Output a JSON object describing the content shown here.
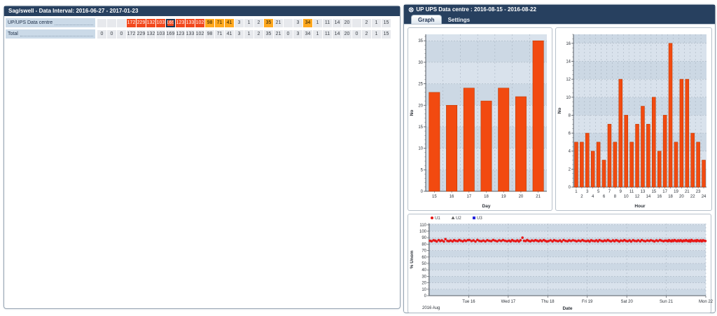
{
  "left_panel": {
    "title": "Sag/swell - Data Interval: 2016-06-27 - 2017-01-23",
    "rows": [
      {
        "label": "UP/UPS Data centre",
        "cells": [
          [
            "",
            "empty"
          ],
          [
            "",
            "empty"
          ],
          [
            "",
            "empty"
          ],
          [
            "172",
            "red"
          ],
          [
            "229",
            "red"
          ],
          [
            "132",
            "red"
          ],
          [
            "103",
            "red"
          ],
          [
            "169",
            "red",
            "sel"
          ],
          [
            "123",
            "red"
          ],
          [
            "133",
            "red"
          ],
          [
            "102",
            "red"
          ],
          [
            "98",
            "orange"
          ],
          [
            "71",
            "orange"
          ],
          [
            "41",
            "orange"
          ],
          [
            "3",
            "plain"
          ],
          [
            "1",
            "plain"
          ],
          [
            "2",
            "plain"
          ],
          [
            "35",
            "orange"
          ],
          [
            "21",
            "plain"
          ],
          [
            "",
            "empty"
          ],
          [
            "3",
            "plain"
          ],
          [
            "34",
            "orange"
          ],
          [
            "1",
            "plain"
          ],
          [
            "11",
            "plain"
          ],
          [
            "14",
            "plain"
          ],
          [
            "20",
            "plain"
          ],
          [
            "",
            "empty"
          ],
          [
            "2",
            "plain"
          ],
          [
            "1",
            "plain"
          ],
          [
            "15",
            "plain"
          ]
        ]
      },
      {
        "label": "Total",
        "cells": [
          [
            "0",
            "plain"
          ],
          [
            "0",
            "plain"
          ],
          [
            "0",
            "plain"
          ],
          [
            "172",
            "plain"
          ],
          [
            "229",
            "plain"
          ],
          [
            "132",
            "plain"
          ],
          [
            "103",
            "plain"
          ],
          [
            "169",
            "plain"
          ],
          [
            "123",
            "plain"
          ],
          [
            "133",
            "plain"
          ],
          [
            "102",
            "plain"
          ],
          [
            "98",
            "plain"
          ],
          [
            "71",
            "plain"
          ],
          [
            "41",
            "plain"
          ],
          [
            "3",
            "plain"
          ],
          [
            "1",
            "plain"
          ],
          [
            "2",
            "plain"
          ],
          [
            "35",
            "plain"
          ],
          [
            "21",
            "plain"
          ],
          [
            "0",
            "plain"
          ],
          [
            "3",
            "plain"
          ],
          [
            "34",
            "plain"
          ],
          [
            "1",
            "plain"
          ],
          [
            "11",
            "plain"
          ],
          [
            "14",
            "plain"
          ],
          [
            "20",
            "plain"
          ],
          [
            "0",
            "plain"
          ],
          [
            "2",
            "plain"
          ],
          [
            "1",
            "plain"
          ],
          [
            "15",
            "plain"
          ]
        ]
      }
    ]
  },
  "right_panel": {
    "close_icon": "⊗",
    "title": "UP UPS Data centre :  2016-08-15 - 2016-08-22",
    "tabs": [
      {
        "label": "Graph",
        "active": true
      },
      {
        "label": "Settings",
        "active": false
      }
    ]
  },
  "colors": {
    "header_navy": "#27405f",
    "bar_fill": "#f24a10",
    "bar_stroke": "#bf3a00",
    "band_dark": "#ccd8e4",
    "band_light": "#d9e2ec",
    "grid_dash": "#9fabb8",
    "axis": "#555b63",
    "dot_red": "#e61717",
    "tri_gray": "#5a5a5a",
    "sq_blue": "#2424dd",
    "cell_red": "#f2481d",
    "cell_orange": "#ffa81e"
  },
  "chart_data": [
    {
      "type": "bar",
      "id": "day",
      "categories": [
        "15",
        "16",
        "17",
        "18",
        "19",
        "20",
        "21"
      ],
      "values": [
        23,
        20,
        24,
        21,
        24,
        22,
        35
      ],
      "title": "",
      "xlabel": "Day",
      "ylabel": "No",
      "ylim": [
        0,
        36.5
      ],
      "ytick_major": 5,
      "ytick_minor": 1,
      "stagger_xlabels": false,
      "grid": true,
      "legend_position": "none"
    },
    {
      "type": "bar",
      "id": "hour",
      "categories": [
        "1",
        "2",
        "3",
        "4",
        "5",
        "6",
        "7",
        "8",
        "9",
        "10",
        "11",
        "12",
        "13",
        "14",
        "15",
        "16",
        "17",
        "18",
        "19",
        "20",
        "21",
        "22",
        "23",
        "24"
      ],
      "values": [
        5,
        5,
        6,
        4,
        5,
        3,
        7,
        5,
        12,
        8,
        5,
        7,
        9,
        7,
        10,
        4,
        8,
        16,
        5,
        12,
        12,
        6,
        5,
        3
      ],
      "title": "",
      "xlabel": "Hour",
      "ylabel": "No",
      "ylim": [
        0,
        17
      ],
      "ytick_major": 2,
      "ytick_minor": 0.5,
      "stagger_xlabels": true,
      "grid": true,
      "legend_position": "none"
    },
    {
      "type": "scatter",
      "id": "magnitude",
      "title": "",
      "xlabel": "Date",
      "ylabel": "% Unom",
      "corner_label": "2016 Aug",
      "ylim": [
        0,
        112
      ],
      "ytick_major": 10,
      "ytick_minor": 2,
      "xlim": [
        0,
        7
      ],
      "grid": true,
      "legend_position": "top-left",
      "xticks": [
        {
          "x": 1,
          "label": "Tue 16"
        },
        {
          "x": 2,
          "label": "Wed 17"
        },
        {
          "x": 3,
          "label": "Thu 18"
        },
        {
          "x": 4,
          "label": "Fri 19"
        },
        {
          "x": 5,
          "label": "Sat 20"
        },
        {
          "x": 6,
          "label": "Sun 21"
        },
        {
          "x": 7,
          "label": "Mon 22"
        }
      ],
      "series": [
        {
          "name": "U1",
          "marker": "circle",
          "color": "#e61717",
          "points": [
            [
              0.02,
              85.2
            ],
            [
              0.06,
              84.5
            ],
            [
              0.11,
              86.0
            ],
            [
              0.15,
              85.4
            ],
            [
              0.19,
              84.2
            ],
            [
              0.24,
              86.3
            ],
            [
              0.28,
              84.8
            ],
            [
              0.32,
              85.8
            ],
            [
              0.37,
              84.1
            ],
            [
              0.41,
              87.8
            ],
            [
              0.46,
              85.0
            ],
            [
              0.5,
              84.6
            ],
            [
              0.54,
              85.6
            ],
            [
              0.59,
              84.3
            ],
            [
              0.63,
              86.1
            ],
            [
              0.67,
              85.1
            ],
            [
              0.72,
              84.7
            ],
            [
              0.76,
              86.4
            ],
            [
              0.8,
              85.3
            ],
            [
              0.85,
              84.4
            ],
            [
              0.89,
              85.9
            ],
            [
              0.93,
              84.9
            ],
            [
              0.98,
              86.2
            ],
            [
              1.02,
              86.3
            ],
            [
              1.07,
              84.8
            ],
            [
              1.12,
              85.8
            ],
            [
              1.17,
              84.1
            ],
            [
              1.22,
              86.5
            ],
            [
              1.27,
              85.0
            ],
            [
              1.32,
              84.6
            ],
            [
              1.37,
              85.6
            ],
            [
              1.42,
              84.3
            ],
            [
              1.47,
              86.1
            ],
            [
              1.52,
              85.1
            ],
            [
              1.57,
              84.7
            ],
            [
              1.62,
              86.4
            ],
            [
              1.67,
              85.3
            ],
            [
              1.72,
              84.4
            ],
            [
              1.77,
              85.9
            ],
            [
              1.82,
              84.9
            ],
            [
              1.87,
              86.2
            ],
            [
              1.92,
              85.2
            ],
            [
              1.97,
              84.5
            ],
            [
              2.02,
              85.5
            ],
            [
              2.06,
              84.3
            ],
            [
              2.1,
              86.2
            ],
            [
              2.14,
              85.0
            ],
            [
              2.19,
              84.6
            ],
            [
              2.23,
              85.8
            ],
            [
              2.27,
              84.2
            ],
            [
              2.31,
              86.0
            ],
            [
              2.36,
              90.0
            ],
            [
              2.4,
              85.2
            ],
            [
              2.44,
              84.8
            ],
            [
              2.48,
              86.4
            ],
            [
              2.52,
              85.1
            ],
            [
              2.56,
              84.4
            ],
            [
              2.6,
              85.7
            ],
            [
              2.65,
              84.9
            ],
            [
              2.69,
              86.1
            ],
            [
              2.73,
              85.3
            ],
            [
              2.77,
              84.5
            ],
            [
              2.81,
              85.9
            ],
            [
              2.85,
              84.7
            ],
            [
              2.9,
              86.3
            ],
            [
              2.94,
              85.0
            ],
            [
              2.98,
              84.2
            ],
            [
              3.02,
              84.8
            ],
            [
              3.07,
              85.9
            ],
            [
              3.12,
              84.3
            ],
            [
              3.16,
              86.1
            ],
            [
              3.21,
              85.2
            ],
            [
              3.26,
              84.6
            ],
            [
              3.31,
              85.7
            ],
            [
              3.35,
              84.1
            ],
            [
              3.4,
              86.3
            ],
            [
              3.45,
              85.0
            ],
            [
              3.5,
              84.5
            ],
            [
              3.54,
              85.8
            ],
            [
              3.59,
              84.9
            ],
            [
              3.64,
              86.0
            ],
            [
              3.69,
              85.3
            ],
            [
              3.73,
              84.4
            ],
            [
              3.78,
              85.6
            ],
            [
              3.83,
              84.7
            ],
            [
              3.88,
              86.2
            ],
            [
              3.92,
              85.1
            ],
            [
              3.97,
              84.6
            ],
            [
              4.02,
              85.4
            ],
            [
              4.06,
              84.2
            ],
            [
              4.1,
              86.0
            ],
            [
              4.14,
              85.1
            ],
            [
              4.19,
              84.7
            ],
            [
              4.23,
              85.9
            ],
            [
              4.27,
              84.3
            ],
            [
              4.31,
              86.2
            ],
            [
              4.36,
              85.0
            ],
            [
              4.4,
              84.5
            ],
            [
              4.44,
              85.7
            ],
            [
              4.48,
              84.8
            ],
            [
              4.52,
              86.4
            ],
            [
              4.56,
              85.2
            ],
            [
              4.6,
              84.4
            ],
            [
              4.65,
              85.8
            ],
            [
              4.69,
              84.6
            ],
            [
              4.73,
              86.1
            ],
            [
              4.77,
              85.3
            ],
            [
              4.81,
              84.1
            ],
            [
              4.85,
              85.6
            ],
            [
              4.9,
              84.9
            ],
            [
              4.94,
              86.3
            ],
            [
              4.98,
              85.0
            ],
            [
              5.02,
              84.6
            ],
            [
              5.07,
              85.8
            ],
            [
              5.11,
              84.2
            ],
            [
              5.16,
              86.1
            ],
            [
              5.2,
              85.0
            ],
            [
              5.25,
              84.7
            ],
            [
              5.29,
              85.9
            ],
            [
              5.34,
              84.4
            ],
            [
              5.38,
              86.3
            ],
            [
              5.43,
              85.1
            ],
            [
              5.47,
              84.5
            ],
            [
              5.52,
              85.7
            ],
            [
              5.57,
              84.9
            ],
            [
              5.61,
              86.0
            ],
            [
              5.66,
              85.2
            ],
            [
              5.7,
              84.3
            ],
            [
              5.75,
              85.8
            ],
            [
              5.79,
              84.8
            ],
            [
              5.84,
              86.2
            ],
            [
              5.88,
              85.4
            ],
            [
              5.93,
              84.6
            ],
            [
              5.97,
              85.5
            ],
            [
              6.01,
              85.3
            ],
            [
              6.04,
              84.6
            ],
            [
              6.07,
              86.1
            ],
            [
              6.1,
              85.0
            ],
            [
              6.13,
              84.4
            ],
            [
              6.15,
              85.8
            ],
            [
              6.18,
              84.8
            ],
            [
              6.21,
              86.3
            ],
            [
              6.24,
              85.2
            ],
            [
              6.27,
              84.5
            ],
            [
              6.3,
              85.9
            ],
            [
              6.33,
              84.7
            ],
            [
              6.36,
              86.0
            ],
            [
              6.38,
              85.4
            ],
            [
              6.41,
              84.3
            ],
            [
              6.44,
              85.7
            ],
            [
              6.47,
              84.9
            ],
            [
              6.5,
              86.2
            ],
            [
              6.53,
              85.1
            ],
            [
              6.56,
              84.6
            ],
            [
              6.58,
              85.8
            ],
            [
              6.61,
              84.2
            ],
            [
              6.64,
              86.4
            ],
            [
              6.67,
              85.0
            ],
            [
              6.7,
              84.8
            ],
            [
              6.73,
              85.6
            ],
            [
              6.76,
              84.5
            ],
            [
              6.78,
              86.1
            ],
            [
              6.81,
              85.3
            ],
            [
              6.84,
              84.7
            ],
            [
              6.87,
              85.9
            ],
            [
              6.9,
              84.4
            ],
            [
              6.93,
              86.0
            ],
            [
              6.96,
              85.2
            ],
            [
              6.99,
              84.9
            ]
          ]
        },
        {
          "name": "U2",
          "marker": "triangle",
          "color": "#5a5a5a",
          "points": []
        },
        {
          "name": "U3",
          "marker": "square",
          "color": "#2424dd",
          "points": []
        }
      ]
    }
  ]
}
